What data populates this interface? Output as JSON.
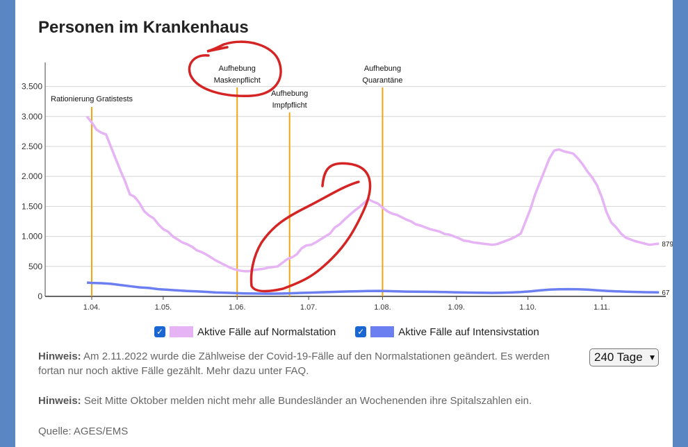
{
  "title": "Personen im Krankenhaus",
  "chart_data": {
    "type": "line",
    "ylim": [
      0,
      3900
    ],
    "xlim": [
      0,
      240
    ],
    "yticks": [
      0,
      500,
      1000,
      1500,
      2000,
      2500,
      3000,
      3500
    ],
    "ytick_labels": [
      "0",
      "500",
      "1.000",
      "1.500",
      "2.000",
      "2.500",
      "3.000",
      "3.500"
    ],
    "xticks": [
      {
        "day": 0,
        "label": "1.04."
      },
      {
        "day": 30,
        "label": "1.05."
      },
      {
        "day": 61,
        "label": "1.06."
      },
      {
        "day": 91,
        "label": "1.07."
      },
      {
        "day": 122,
        "label": "1.08."
      },
      {
        "day": 153,
        "label": "1.09."
      },
      {
        "day": 183,
        "label": "1.10."
      },
      {
        "day": 214,
        "label": "1.11."
      }
    ],
    "events": [
      {
        "day": 0,
        "lines": [
          "Rationierung Gratistests"
        ]
      },
      {
        "day": 61,
        "lines": [
          "Aufhebung",
          "Maskenpflicht"
        ]
      },
      {
        "day": 83,
        "lines": [
          "Aufhebung",
          "Impfpflicht"
        ]
      },
      {
        "day": 122,
        "lines": [
          "Aufhebung",
          "Quarantäne"
        ]
      }
    ],
    "series": [
      {
        "name": "Aktive Fälle auf Normalstation",
        "color": "#e6b3f5",
        "end_label": "879",
        "points": [
          [
            -2,
            3000
          ],
          [
            0,
            2900
          ],
          [
            2,
            2780
          ],
          [
            4,
            2730
          ],
          [
            6,
            2700
          ],
          [
            8,
            2500
          ],
          [
            10,
            2300
          ],
          [
            12,
            2100
          ],
          [
            14,
            1920
          ],
          [
            16,
            1700
          ],
          [
            18,
            1660
          ],
          [
            20,
            1560
          ],
          [
            22,
            1420
          ],
          [
            24,
            1350
          ],
          [
            26,
            1300
          ],
          [
            28,
            1200
          ],
          [
            30,
            1120
          ],
          [
            32,
            1080
          ],
          [
            34,
            1000
          ],
          [
            36,
            950
          ],
          [
            38,
            900
          ],
          [
            40,
            870
          ],
          [
            42,
            830
          ],
          [
            44,
            770
          ],
          [
            46,
            740
          ],
          [
            48,
            700
          ],
          [
            50,
            650
          ],
          [
            52,
            600
          ],
          [
            54,
            560
          ],
          [
            56,
            520
          ],
          [
            58,
            480
          ],
          [
            60,
            450
          ],
          [
            62,
            430
          ],
          [
            64,
            420
          ],
          [
            66,
            420
          ],
          [
            68,
            440
          ],
          [
            70,
            450
          ],
          [
            72,
            460
          ],
          [
            74,
            480
          ],
          [
            76,
            490
          ],
          [
            78,
            500
          ],
          [
            80,
            560
          ],
          [
            82,
            620
          ],
          [
            84,
            650
          ],
          [
            86,
            700
          ],
          [
            88,
            800
          ],
          [
            90,
            850
          ],
          [
            92,
            860
          ],
          [
            94,
            900
          ],
          [
            96,
            950
          ],
          [
            98,
            1000
          ],
          [
            100,
            1050
          ],
          [
            102,
            1150
          ],
          [
            104,
            1200
          ],
          [
            106,
            1280
          ],
          [
            108,
            1350
          ],
          [
            110,
            1420
          ],
          [
            112,
            1480
          ],
          [
            114,
            1550
          ],
          [
            116,
            1620
          ],
          [
            118,
            1580
          ],
          [
            120,
            1550
          ],
          [
            122,
            1480
          ],
          [
            124,
            1420
          ],
          [
            126,
            1380
          ],
          [
            128,
            1360
          ],
          [
            130,
            1320
          ],
          [
            132,
            1280
          ],
          [
            134,
            1250
          ],
          [
            136,
            1200
          ],
          [
            138,
            1180
          ],
          [
            140,
            1150
          ],
          [
            142,
            1120
          ],
          [
            144,
            1100
          ],
          [
            146,
            1080
          ],
          [
            148,
            1040
          ],
          [
            150,
            1030
          ],
          [
            152,
            1000
          ],
          [
            154,
            970
          ],
          [
            156,
            930
          ],
          [
            158,
            920
          ],
          [
            160,
            900
          ],
          [
            162,
            890
          ],
          [
            164,
            880
          ],
          [
            166,
            870
          ],
          [
            168,
            860
          ],
          [
            170,
            870
          ],
          [
            172,
            900
          ],
          [
            174,
            930
          ],
          [
            176,
            960
          ],
          [
            178,
            1000
          ],
          [
            180,
            1050
          ],
          [
            182,
            1250
          ],
          [
            184,
            1450
          ],
          [
            186,
            1700
          ],
          [
            188,
            1900
          ],
          [
            190,
            2100
          ],
          [
            192,
            2300
          ],
          [
            194,
            2430
          ],
          [
            196,
            2450
          ],
          [
            198,
            2420
          ],
          [
            200,
            2400
          ],
          [
            202,
            2380
          ],
          [
            204,
            2300
          ],
          [
            206,
            2200
          ],
          [
            208,
            2080
          ],
          [
            210,
            1980
          ],
          [
            212,
            1850
          ],
          [
            214,
            1650
          ],
          [
            216,
            1400
          ],
          [
            218,
            1230
          ],
          [
            220,
            1150
          ],
          [
            222,
            1050
          ],
          [
            224,
            980
          ],
          [
            226,
            950
          ],
          [
            228,
            920
          ],
          [
            230,
            900
          ],
          [
            232,
            880
          ],
          [
            234,
            860
          ],
          [
            236,
            870
          ],
          [
            238,
            879
          ]
        ]
      },
      {
        "name": "Aktive Fälle auf Intensivstation",
        "color": "#6b7ff0",
        "end_label": "67",
        "points": [
          [
            -2,
            230
          ],
          [
            0,
            225
          ],
          [
            4,
            220
          ],
          [
            8,
            210
          ],
          [
            12,
            190
          ],
          [
            16,
            170
          ],
          [
            20,
            150
          ],
          [
            24,
            140
          ],
          [
            28,
            120
          ],
          [
            32,
            110
          ],
          [
            36,
            100
          ],
          [
            40,
            90
          ],
          [
            44,
            85
          ],
          [
            48,
            75
          ],
          [
            52,
            65
          ],
          [
            56,
            60
          ],
          [
            60,
            55
          ],
          [
            64,
            50
          ],
          [
            68,
            48
          ],
          [
            72,
            45
          ],
          [
            76,
            45
          ],
          [
            80,
            48
          ],
          [
            84,
            52
          ],
          [
            88,
            58
          ],
          [
            92,
            62
          ],
          [
            96,
            68
          ],
          [
            100,
            72
          ],
          [
            104,
            78
          ],
          [
            108,
            82
          ],
          [
            112,
            86
          ],
          [
            116,
            90
          ],
          [
            120,
            92
          ],
          [
            124,
            88
          ],
          [
            128,
            85
          ],
          [
            132,
            80
          ],
          [
            136,
            78
          ],
          [
            140,
            76
          ],
          [
            144,
            75
          ],
          [
            148,
            72
          ],
          [
            152,
            68
          ],
          [
            156,
            65
          ],
          [
            160,
            62
          ],
          [
            164,
            60
          ],
          [
            168,
            58
          ],
          [
            172,
            60
          ],
          [
            176,
            65
          ],
          [
            180,
            72
          ],
          [
            184,
            85
          ],
          [
            188,
            100
          ],
          [
            192,
            112
          ],
          [
            196,
            118
          ],
          [
            200,
            120
          ],
          [
            204,
            118
          ],
          [
            208,
            112
          ],
          [
            212,
            102
          ],
          [
            216,
            92
          ],
          [
            220,
            85
          ],
          [
            224,
            78
          ],
          [
            228,
            74
          ],
          [
            232,
            70
          ],
          [
            236,
            68
          ],
          [
            238,
            67
          ]
        ]
      }
    ]
  },
  "legend": {
    "normal_label": "Aktive Fälle auf Normalstation",
    "icu_label": "Aktive Fälle auf Intensivstation",
    "normal_color": "#e6b3f5",
    "icu_color": "#6b7ff0"
  },
  "notes": {
    "note1_prefix": "Hinweis:",
    "note1_text": " Am 2.11.2022 wurde die Zählweise der Covid-19-Fälle auf den Normalstationen geändert. Es werden fortan nur noch aktive Fälle gezählt. Mehr dazu unter FAQ.",
    "note2_prefix": "Hinweis:",
    "note2_text": " Seit Mitte Oktober melden nicht mehr alle Bundesländer an Wochenenden ihre Spitalszahlen ein.",
    "source": "Quelle: AGES/EMS"
  },
  "range_select": {
    "selected": "240 Tage"
  },
  "annotation_color": "#d42424"
}
